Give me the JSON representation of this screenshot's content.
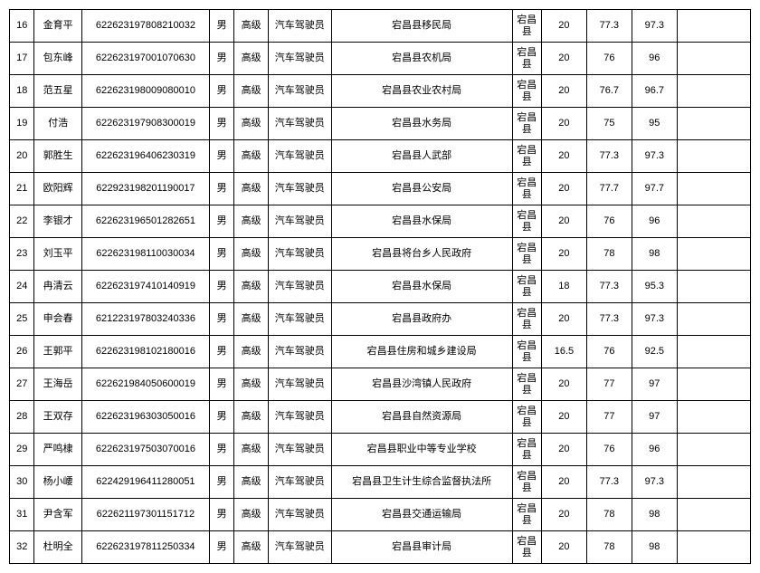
{
  "rows": [
    {
      "idx": "16",
      "name": "金育平",
      "id": "622623197808210032",
      "sex": "男",
      "level": "高级",
      "job": "汽车驾驶员",
      "unit": "宕昌县移民局",
      "county": "宕昌县",
      "s1": "20",
      "s2": "77.3",
      "s3": "97.3"
    },
    {
      "idx": "17",
      "name": "包东峰",
      "id": "622623197001070630",
      "sex": "男",
      "level": "高级",
      "job": "汽车驾驶员",
      "unit": "宕昌县农机局",
      "county": "宕昌县",
      "s1": "20",
      "s2": "76",
      "s3": "96"
    },
    {
      "idx": "18",
      "name": "范五星",
      "id": "622623198009080010",
      "sex": "男",
      "level": "高级",
      "job": "汽车驾驶员",
      "unit": "宕昌县农业农村局",
      "county": "宕昌县",
      "s1": "20",
      "s2": "76.7",
      "s3": "96.7"
    },
    {
      "idx": "19",
      "name": "付浩",
      "id": "622623197908300019",
      "sex": "男",
      "level": "高级",
      "job": "汽车驾驶员",
      "unit": "宕昌县水务局",
      "county": "宕昌县",
      "s1": "20",
      "s2": "75",
      "s3": "95"
    },
    {
      "idx": "20",
      "name": "郭胜生",
      "id": "622623196406230319",
      "sex": "男",
      "level": "高级",
      "job": "汽车驾驶员",
      "unit": "宕昌县人武部",
      "county": "宕昌县",
      "s1": "20",
      "s2": "77.3",
      "s3": "97.3"
    },
    {
      "idx": "21",
      "name": "欧阳辉",
      "id": "622923198201190017",
      "sex": "男",
      "level": "高级",
      "job": "汽车驾驶员",
      "unit": "宕昌县公安局",
      "county": "宕昌县",
      "s1": "20",
      "s2": "77.7",
      "s3": "97.7"
    },
    {
      "idx": "22",
      "name": "李银才",
      "id": "622623196501282651",
      "sex": "男",
      "level": "高级",
      "job": "汽车驾驶员",
      "unit": "宕昌县水保局",
      "county": "宕昌县",
      "s1": "20",
      "s2": "76",
      "s3": "96"
    },
    {
      "idx": "23",
      "name": "刘玉平",
      "id": "622623198110030034",
      "sex": "男",
      "level": "高级",
      "job": "汽车驾驶员",
      "unit": "宕昌县将台乡人民政府",
      "county": "宕昌县",
      "s1": "20",
      "s2": "78",
      "s3": "98"
    },
    {
      "idx": "24",
      "name": "冉清云",
      "id": "622623197410140919",
      "sex": "男",
      "level": "高级",
      "job": "汽车驾驶员",
      "unit": "宕昌县水保局",
      "county": "宕昌县",
      "s1": "18",
      "s2": "77.3",
      "s3": "95.3"
    },
    {
      "idx": "25",
      "name": "申会春",
      "id": "621223197803240336",
      "sex": "男",
      "level": "高级",
      "job": "汽车驾驶员",
      "unit": "宕昌县政府办",
      "county": "宕昌县",
      "s1": "20",
      "s2": "77.3",
      "s3": "97.3"
    },
    {
      "idx": "26",
      "name": "王郭平",
      "id": "622623198102180016",
      "sex": "男",
      "level": "高级",
      "job": "汽车驾驶员",
      "unit": "宕昌县住房和城乡建设局",
      "county": "宕昌县",
      "s1": "16.5",
      "s2": "76",
      "s3": "92.5"
    },
    {
      "idx": "27",
      "name": "王海岳",
      "id": "622621984050600019",
      "sex": "男",
      "level": "高级",
      "job": "汽车驾驶员",
      "unit": "宕昌县沙湾镇人民政府",
      "county": "宕昌县",
      "s1": "20",
      "s2": "77",
      "s3": "97"
    },
    {
      "idx": "28",
      "name": "王双存",
      "id": "622623196303050016",
      "sex": "男",
      "level": "高级",
      "job": "汽车驾驶员",
      "unit": "宕昌县自然资源局",
      "county": "宕昌县",
      "s1": "20",
      "s2": "77",
      "s3": "97"
    },
    {
      "idx": "29",
      "name": "严鸣棣",
      "id": "622623197503070016",
      "sex": "男",
      "level": "高级",
      "job": "汽车驾驶员",
      "unit": "宕昌县职业中等专业学校",
      "county": "宕昌县",
      "s1": "20",
      "s2": "76",
      "s3": "96"
    },
    {
      "idx": "30",
      "name": "杨小崾",
      "id": "622429196411280051",
      "sex": "男",
      "level": "高级",
      "job": "汽车驾驶员",
      "unit": "宕昌县卫生计生综合监督执法所",
      "county": "宕昌县",
      "s1": "20",
      "s2": "77.3",
      "s3": "97.3"
    },
    {
      "idx": "31",
      "name": "尹含军",
      "id": "622621197301151712",
      "sex": "男",
      "level": "高级",
      "job": "汽车驾驶员",
      "unit": "宕昌县交通运输局",
      "county": "宕昌县",
      "s1": "20",
      "s2": "78",
      "s3": "98"
    },
    {
      "idx": "32",
      "name": "杜明全",
      "id": "622623197811250334",
      "sex": "男",
      "level": "高级",
      "job": "汽车驾驶员",
      "unit": "宕昌县审计局",
      "county": "宕昌县",
      "s1": "20",
      "s2": "78",
      "s3": "98"
    }
  ]
}
